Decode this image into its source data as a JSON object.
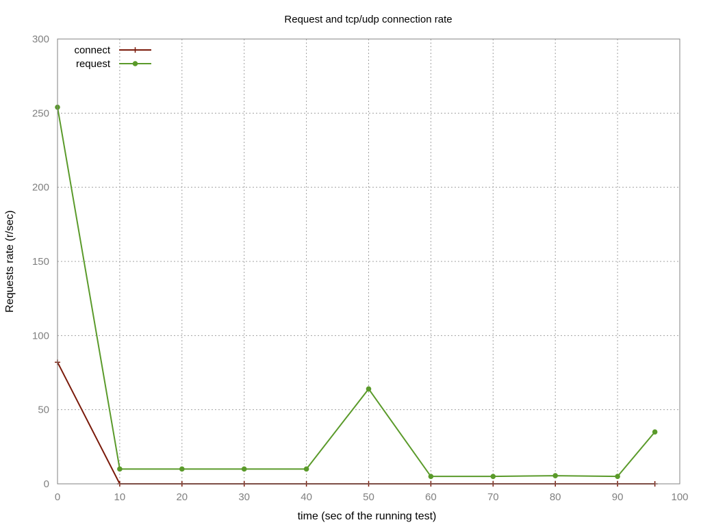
{
  "chart_data": {
    "type": "line",
    "title": "Request and tcp/udp connection rate",
    "xlabel": "time (sec of the running test)",
    "ylabel": "Requests rate (r/sec)",
    "xlim": [
      0,
      100
    ],
    "ylim": [
      0,
      300
    ],
    "x_ticks": [
      0,
      10,
      20,
      30,
      40,
      50,
      60,
      70,
      80,
      90,
      100
    ],
    "y_ticks": [
      0,
      50,
      100,
      150,
      200,
      250,
      300
    ],
    "grid": true,
    "legend_position": "top-left",
    "series": [
      {
        "name": "connect",
        "color": "#7a1a0a",
        "marker": "plus",
        "x": [
          0,
          10,
          20,
          30,
          40,
          50,
          60,
          70,
          80,
          90,
          96
        ],
        "y": [
          82,
          0,
          0,
          0,
          0,
          0,
          0,
          0,
          0,
          0,
          0
        ]
      },
      {
        "name": "request",
        "color": "#5a9a2a",
        "marker": "circle",
        "x": [
          0,
          10,
          20,
          30,
          40,
          50,
          60,
          70,
          80,
          90,
          96
        ],
        "y": [
          254,
          10,
          10,
          10,
          10,
          64,
          5,
          5,
          5.5,
          5,
          35
        ]
      }
    ]
  }
}
